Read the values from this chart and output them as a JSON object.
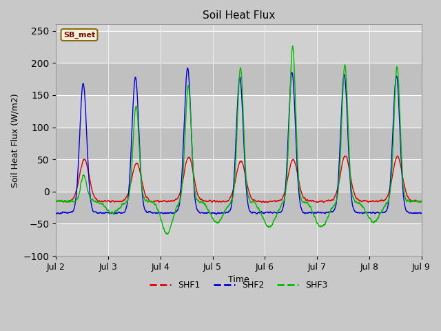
{
  "title": "Soil Heat Flux",
  "xlabel": "Time",
  "ylabel": "Soil Heat Flux (W/m2)",
  "ylim": [
    -100,
    260
  ],
  "yticks": [
    -100,
    -50,
    0,
    50,
    100,
    150,
    200,
    250
  ],
  "band_colors": [
    "#d8d8d8",
    "#c8c8c8"
  ],
  "grid_line_color": "#ffffff",
  "fig_bg": "#c8c8c8",
  "colors": {
    "SHF1": "#dd0000",
    "SHF2": "#0000dd",
    "SHF3": "#00bb00"
  },
  "legend_label": "SB_met",
  "legend_box_facecolor": "#f5f5dc",
  "legend_box_edgecolor": "#8b6914",
  "xtick_labels": [
    "Jul 2",
    "Jul 3",
    "Jul 4",
    "Jul 5",
    "Jul 6",
    "Jul 7",
    "Jul 8",
    "Jul 9"
  ]
}
